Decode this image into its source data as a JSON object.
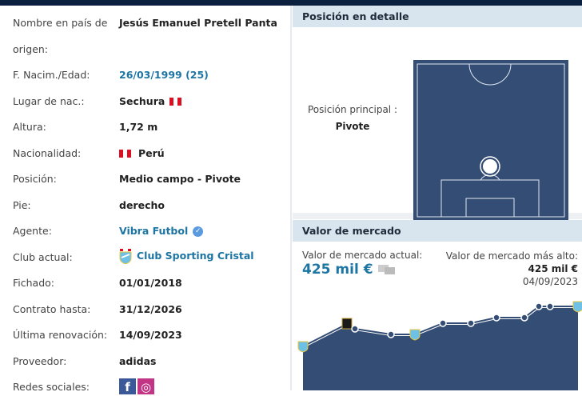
{
  "left_panel": {
    "rows": [
      {
        "label": "Nombre en país de",
        "label2": "origen:",
        "value": "Jesús Emanuel Pretell Panta"
      },
      {
        "label": "F. Nacim./Edad:",
        "value": "26/03/1999 (25)"
      },
      {
        "label": "Lugar de nac.:",
        "value": "Sechura"
      },
      {
        "label": "Altura:",
        "value": "1,72 m"
      },
      {
        "label": "Nacionalidad:",
        "value": "Perú"
      },
      {
        "label": "Posición:",
        "value": "Medio campo - Pivote"
      },
      {
        "label": "Pie:",
        "value": "derecho"
      },
      {
        "label": "Agente:",
        "value": "Vibra Futbol"
      },
      {
        "label": "Club actual:",
        "value": "Club Sporting Cristal"
      },
      {
        "label": "Fichado:",
        "value": "01/01/2018"
      },
      {
        "label": "Contrato hasta:",
        "value": "31/12/2026"
      },
      {
        "label": "Última renovación:",
        "value": "14/09/2023"
      },
      {
        "label": "Proveedor:",
        "value": "adidas"
      },
      {
        "label": "Redes sociales:"
      }
    ]
  },
  "position": {
    "title": "Posición en detalle",
    "main_label": "Posición principal :",
    "main_value": "Pivote"
  },
  "market_value": {
    "title": "Valor de mercado",
    "current_label": "Valor de mercado actual:",
    "current_value": "425 mil €",
    "highest_label": "Valor de mercado más alto:",
    "highest_value": "425 mil €",
    "highest_date": "04/09/2023"
  },
  "colors": {
    "navy": "#0b1f3f",
    "pitch": "#344d74",
    "link": "#1d75a3",
    "header_bg": "#d9e5ee"
  }
}
